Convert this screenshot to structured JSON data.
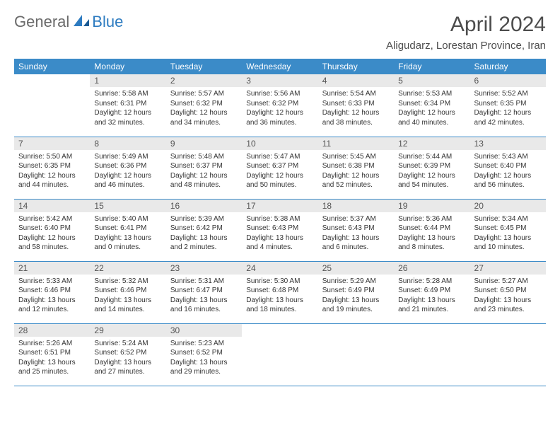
{
  "brand": {
    "part1": "General",
    "part2": "Blue"
  },
  "title": "April 2024",
  "location": "Aligudarz, Lorestan Province, Iran",
  "colors": {
    "header_bg": "#3b8bc8",
    "header_text": "#ffffff",
    "daynum_bg": "#e9e9e9",
    "divider": "#3b8bc8",
    "body_text": "#333333",
    "title_text": "#4d4d4d",
    "brand_gray": "#6a6a6a",
    "brand_blue": "#2d7bc0",
    "background": "#ffffff"
  },
  "typography": {
    "title_fontsize": 30,
    "location_fontsize": 15,
    "header_fontsize": 12,
    "daynum_fontsize": 12,
    "body_fontsize": 10
  },
  "weekdays": [
    "Sunday",
    "Monday",
    "Tuesday",
    "Wednesday",
    "Thursday",
    "Friday",
    "Saturday"
  ],
  "weeks": [
    [
      null,
      {
        "n": "1",
        "sunrise": "5:58 AM",
        "sunset": "6:31 PM",
        "daylight": "12 hours and 32 minutes."
      },
      {
        "n": "2",
        "sunrise": "5:57 AM",
        "sunset": "6:32 PM",
        "daylight": "12 hours and 34 minutes."
      },
      {
        "n": "3",
        "sunrise": "5:56 AM",
        "sunset": "6:32 PM",
        "daylight": "12 hours and 36 minutes."
      },
      {
        "n": "4",
        "sunrise": "5:54 AM",
        "sunset": "6:33 PM",
        "daylight": "12 hours and 38 minutes."
      },
      {
        "n": "5",
        "sunrise": "5:53 AM",
        "sunset": "6:34 PM",
        "daylight": "12 hours and 40 minutes."
      },
      {
        "n": "6",
        "sunrise": "5:52 AM",
        "sunset": "6:35 PM",
        "daylight": "12 hours and 42 minutes."
      }
    ],
    [
      {
        "n": "7",
        "sunrise": "5:50 AM",
        "sunset": "6:35 PM",
        "daylight": "12 hours and 44 minutes."
      },
      {
        "n": "8",
        "sunrise": "5:49 AM",
        "sunset": "6:36 PM",
        "daylight": "12 hours and 46 minutes."
      },
      {
        "n": "9",
        "sunrise": "5:48 AM",
        "sunset": "6:37 PM",
        "daylight": "12 hours and 48 minutes."
      },
      {
        "n": "10",
        "sunrise": "5:47 AM",
        "sunset": "6:37 PM",
        "daylight": "12 hours and 50 minutes."
      },
      {
        "n": "11",
        "sunrise": "5:45 AM",
        "sunset": "6:38 PM",
        "daylight": "12 hours and 52 minutes."
      },
      {
        "n": "12",
        "sunrise": "5:44 AM",
        "sunset": "6:39 PM",
        "daylight": "12 hours and 54 minutes."
      },
      {
        "n": "13",
        "sunrise": "5:43 AM",
        "sunset": "6:40 PM",
        "daylight": "12 hours and 56 minutes."
      }
    ],
    [
      {
        "n": "14",
        "sunrise": "5:42 AM",
        "sunset": "6:40 PM",
        "daylight": "12 hours and 58 minutes."
      },
      {
        "n": "15",
        "sunrise": "5:40 AM",
        "sunset": "6:41 PM",
        "daylight": "13 hours and 0 minutes."
      },
      {
        "n": "16",
        "sunrise": "5:39 AM",
        "sunset": "6:42 PM",
        "daylight": "13 hours and 2 minutes."
      },
      {
        "n": "17",
        "sunrise": "5:38 AM",
        "sunset": "6:43 PM",
        "daylight": "13 hours and 4 minutes."
      },
      {
        "n": "18",
        "sunrise": "5:37 AM",
        "sunset": "6:43 PM",
        "daylight": "13 hours and 6 minutes."
      },
      {
        "n": "19",
        "sunrise": "5:36 AM",
        "sunset": "6:44 PM",
        "daylight": "13 hours and 8 minutes."
      },
      {
        "n": "20",
        "sunrise": "5:34 AM",
        "sunset": "6:45 PM",
        "daylight": "13 hours and 10 minutes."
      }
    ],
    [
      {
        "n": "21",
        "sunrise": "5:33 AM",
        "sunset": "6:46 PM",
        "daylight": "13 hours and 12 minutes."
      },
      {
        "n": "22",
        "sunrise": "5:32 AM",
        "sunset": "6:46 PM",
        "daylight": "13 hours and 14 minutes."
      },
      {
        "n": "23",
        "sunrise": "5:31 AM",
        "sunset": "6:47 PM",
        "daylight": "13 hours and 16 minutes."
      },
      {
        "n": "24",
        "sunrise": "5:30 AM",
        "sunset": "6:48 PM",
        "daylight": "13 hours and 18 minutes."
      },
      {
        "n": "25",
        "sunrise": "5:29 AM",
        "sunset": "6:49 PM",
        "daylight": "13 hours and 19 minutes."
      },
      {
        "n": "26",
        "sunrise": "5:28 AM",
        "sunset": "6:49 PM",
        "daylight": "13 hours and 21 minutes."
      },
      {
        "n": "27",
        "sunrise": "5:27 AM",
        "sunset": "6:50 PM",
        "daylight": "13 hours and 23 minutes."
      }
    ],
    [
      {
        "n": "28",
        "sunrise": "5:26 AM",
        "sunset": "6:51 PM",
        "daylight": "13 hours and 25 minutes."
      },
      {
        "n": "29",
        "sunrise": "5:24 AM",
        "sunset": "6:52 PM",
        "daylight": "13 hours and 27 minutes."
      },
      {
        "n": "30",
        "sunrise": "5:23 AM",
        "sunset": "6:52 PM",
        "daylight": "13 hours and 29 minutes."
      },
      null,
      null,
      null,
      null
    ]
  ],
  "labels": {
    "sunrise": "Sunrise:",
    "sunset": "Sunset:",
    "daylight": "Daylight:"
  }
}
